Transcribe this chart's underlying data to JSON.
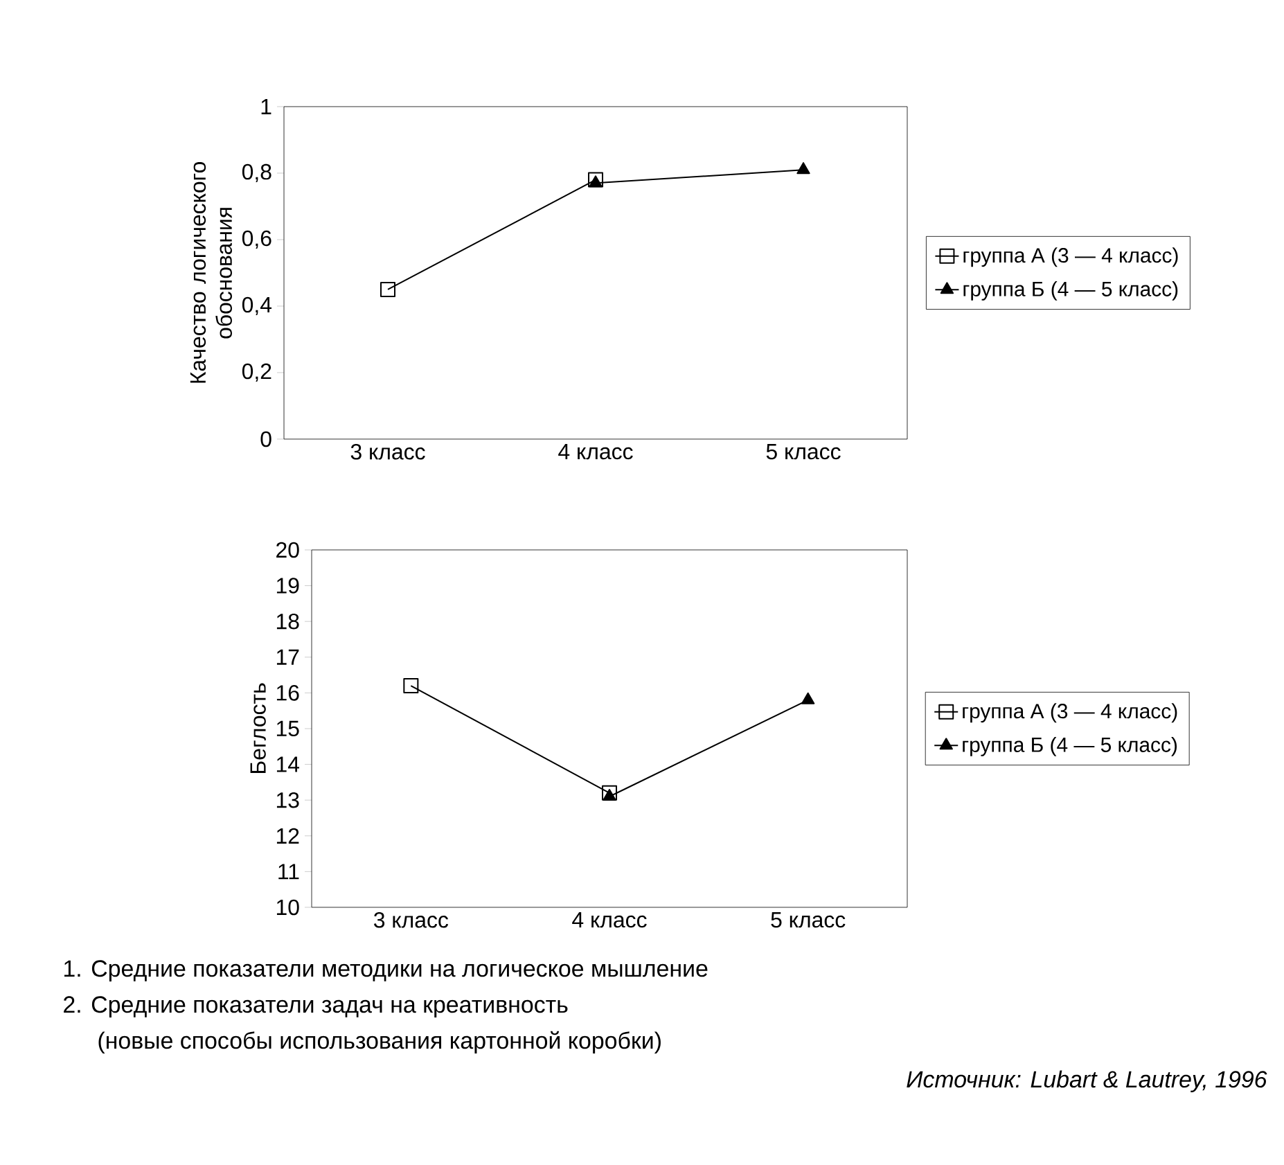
{
  "chart_data": [
    {
      "type": "line",
      "ylabel": "Качество логического обоснования",
      "categories": [
        "3 класс",
        "4 класс",
        "5 класс"
      ],
      "ylim": [
        0,
        1
      ],
      "yticks": [
        0,
        {
          "value": 0.2,
          "label": "0,2"
        },
        {
          "value": 0.4,
          "label": "0,4"
        },
        {
          "value": 0.6,
          "label": "0,6"
        },
        {
          "value": 0.8,
          "label": "0,8"
        },
        1
      ],
      "legend": "right",
      "series": [
        {
          "name": "группа А (3 — 4 класс)",
          "color": "#000000",
          "marker": "square",
          "values": [
            0.45,
            0.78,
            null
          ]
        },
        {
          "name": "группа Б (4 — 5 класс)",
          "color": "#000000",
          "marker": "triangle",
          "values": [
            null,
            0.77,
            0.81
          ]
        }
      ]
    },
    {
      "type": "line",
      "ylabel": "Беглость",
      "categories": [
        "3 класс",
        "4 класс",
        "5 класс"
      ],
      "ylim": [
        10,
        20
      ],
      "yticks": [
        10,
        11,
        12,
        13,
        14,
        15,
        16,
        17,
        18,
        19,
        20
      ],
      "legend": "right",
      "series": [
        {
          "name": "группа А (3 — 4 класс)",
          "color": "#000000",
          "marker": "square",
          "values": [
            16.2,
            13.2,
            null
          ]
        },
        {
          "name": "группа Б (4 — 5 класс)",
          "color": "#000000",
          "marker": "triangle",
          "values": [
            null,
            13.1,
            15.8
          ]
        }
      ],
      "annotations": [
        "1. Средние показатели методики на логическое мышление",
        "2. Средние показатели задач на креативность",
        "(новые способы использования картонной коробки)",
        "Источник: Lubart & Lautrey, 1996"
      ]
    }
  ]
}
